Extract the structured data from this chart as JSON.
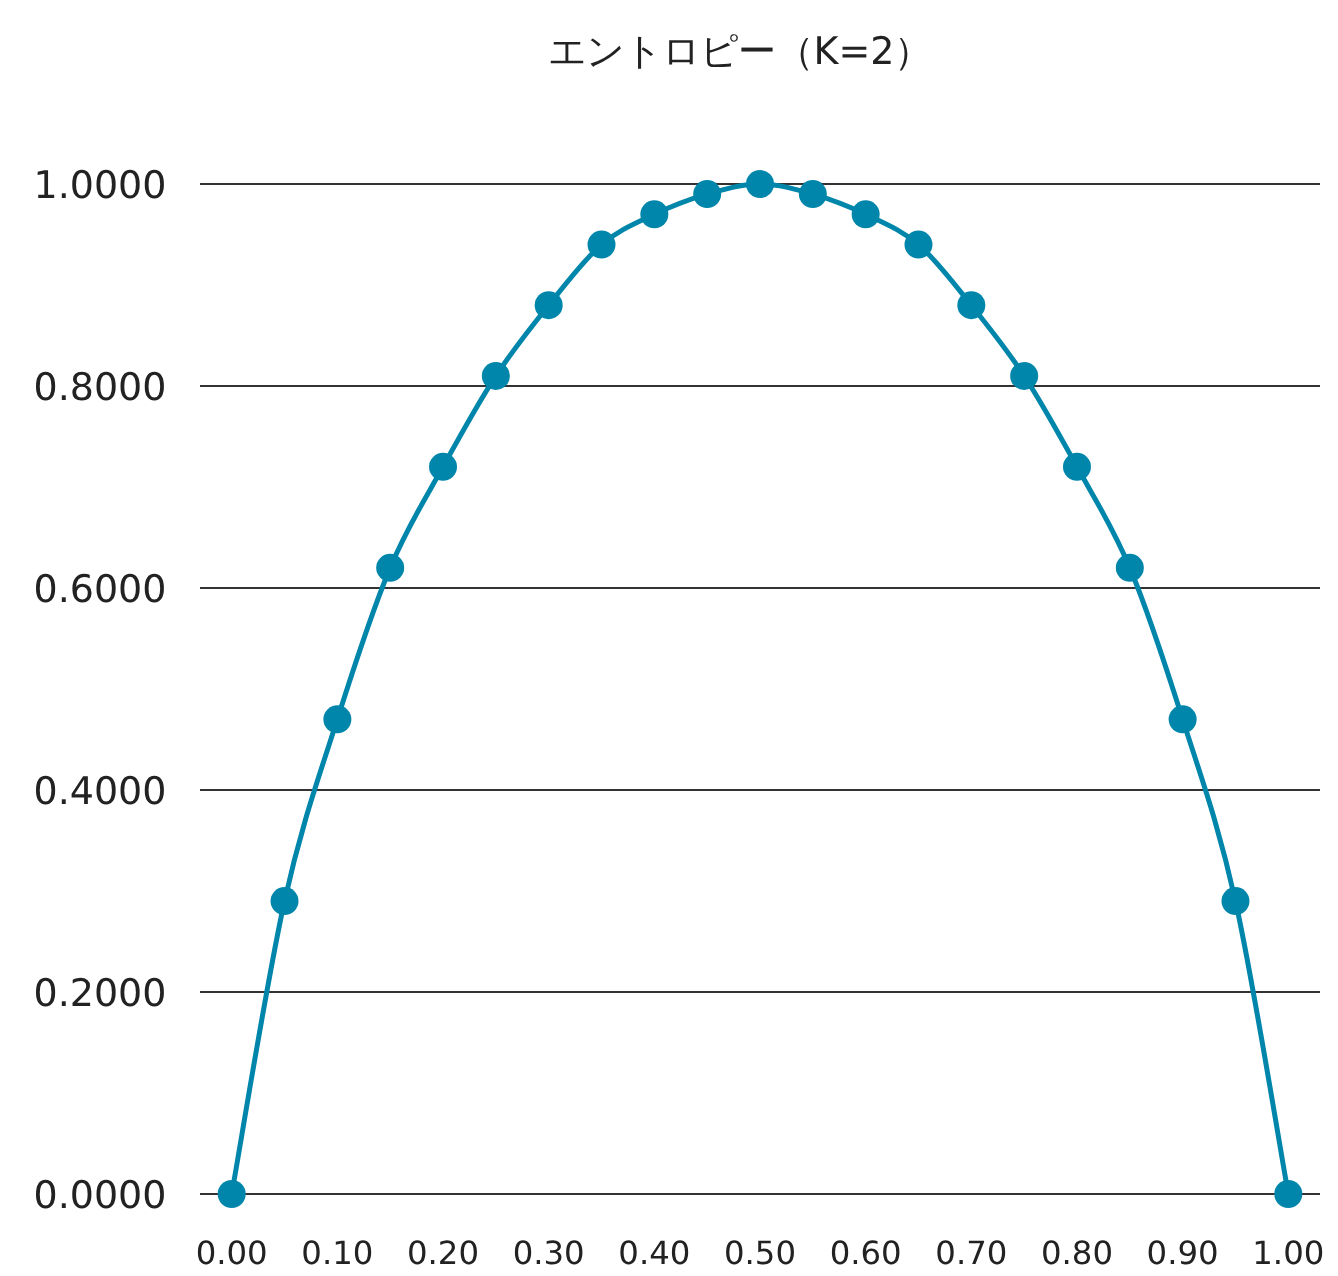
{
  "chart_data": {
    "type": "line",
    "title": "エントロピー（K=2）",
    "x": [
      0,
      0.05,
      0.1,
      0.15,
      0.2,
      0.25,
      0.3,
      0.35,
      0.4,
      0.45,
      0.5,
      0.55,
      0.6,
      0.65,
      0.7,
      0.75,
      0.8,
      0.85,
      0.9,
      0.95,
      1.0
    ],
    "series": [
      {
        "color": "#0086aa",
        "values": [
          0,
          0.29,
          0.47,
          0.62,
          0.72,
          0.81,
          0.88,
          0.94,
          0.97,
          0.99,
          1.0,
          0.99,
          0.97,
          0.94,
          0.88,
          0.81,
          0.72,
          0.62,
          0.47,
          0.29,
          0
        ]
      }
    ],
    "marker": "circle",
    "line_style": "solid",
    "xlim": [
      -0.03,
      1.03
    ],
    "xticks": [
      {
        "value": 0,
        "label": "0.00"
      },
      {
        "value": 0.1,
        "label": "0.10"
      },
      {
        "value": 0.2,
        "label": "0.20"
      },
      {
        "value": 0.3,
        "label": "0.30"
      },
      {
        "value": 0.4,
        "label": "0.40"
      },
      {
        "value": 0.5,
        "label": "0.50"
      },
      {
        "value": 0.6,
        "label": "0.60"
      },
      {
        "value": 0.7,
        "label": "0.70"
      },
      {
        "value": 0.8,
        "label": "0.80"
      },
      {
        "value": 0.9,
        "label": "0.90"
      },
      {
        "value": 1.0,
        "label": "1.00"
      }
    ],
    "ylim": [
      0,
      1
    ],
    "yticks": [
      {
        "value": 0,
        "label": "0.0000"
      },
      {
        "value": 0.2,
        "label": "0.2000"
      },
      {
        "value": 0.4,
        "label": "0.4000"
      },
      {
        "value": 0.6,
        "label": "0.6000"
      },
      {
        "value": 0.8,
        "label": "0.8000"
      },
      {
        "value": 1.0,
        "label": "1.0000"
      }
    ],
    "grid": "y"
  }
}
